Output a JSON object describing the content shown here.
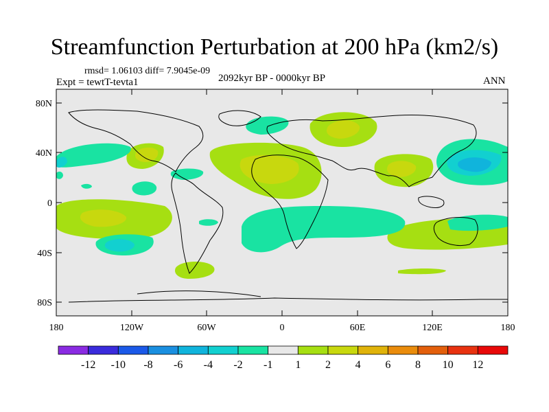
{
  "title": "Streamfunction Perturbation at 200 hPa (km2/s)",
  "stats": "rmsd= 1.06103 diff= 7.9045e-09",
  "experiment": "Expt = tewtT-tevta1",
  "period": "2092kyr BP - 0000kyr BP",
  "season": "ANN",
  "axes": {
    "y_ticks": [
      "80N",
      "40N",
      "0",
      "40S",
      "80S"
    ],
    "x_ticks": [
      "180",
      "120W",
      "60W",
      "0",
      "60E",
      "120E",
      "180"
    ]
  },
  "legend": {
    "labels": [
      "-12",
      "-10",
      "-8",
      "-6",
      "-4",
      "-2",
      "-1",
      "1",
      "2",
      "4",
      "6",
      "8",
      "10",
      "12"
    ],
    "colors": [
      "#8a2be2",
      "#3a2bdc",
      "#1b59e8",
      "#1a8fe0",
      "#10b4dc",
      "#12d0d0",
      "#19e3a2",
      "#e8e8e8",
      "#a6df12",
      "#c8d80e",
      "#e0b30a",
      "#ea8c0c",
      "#e35f0c",
      "#e83210",
      "#e80808"
    ]
  }
}
